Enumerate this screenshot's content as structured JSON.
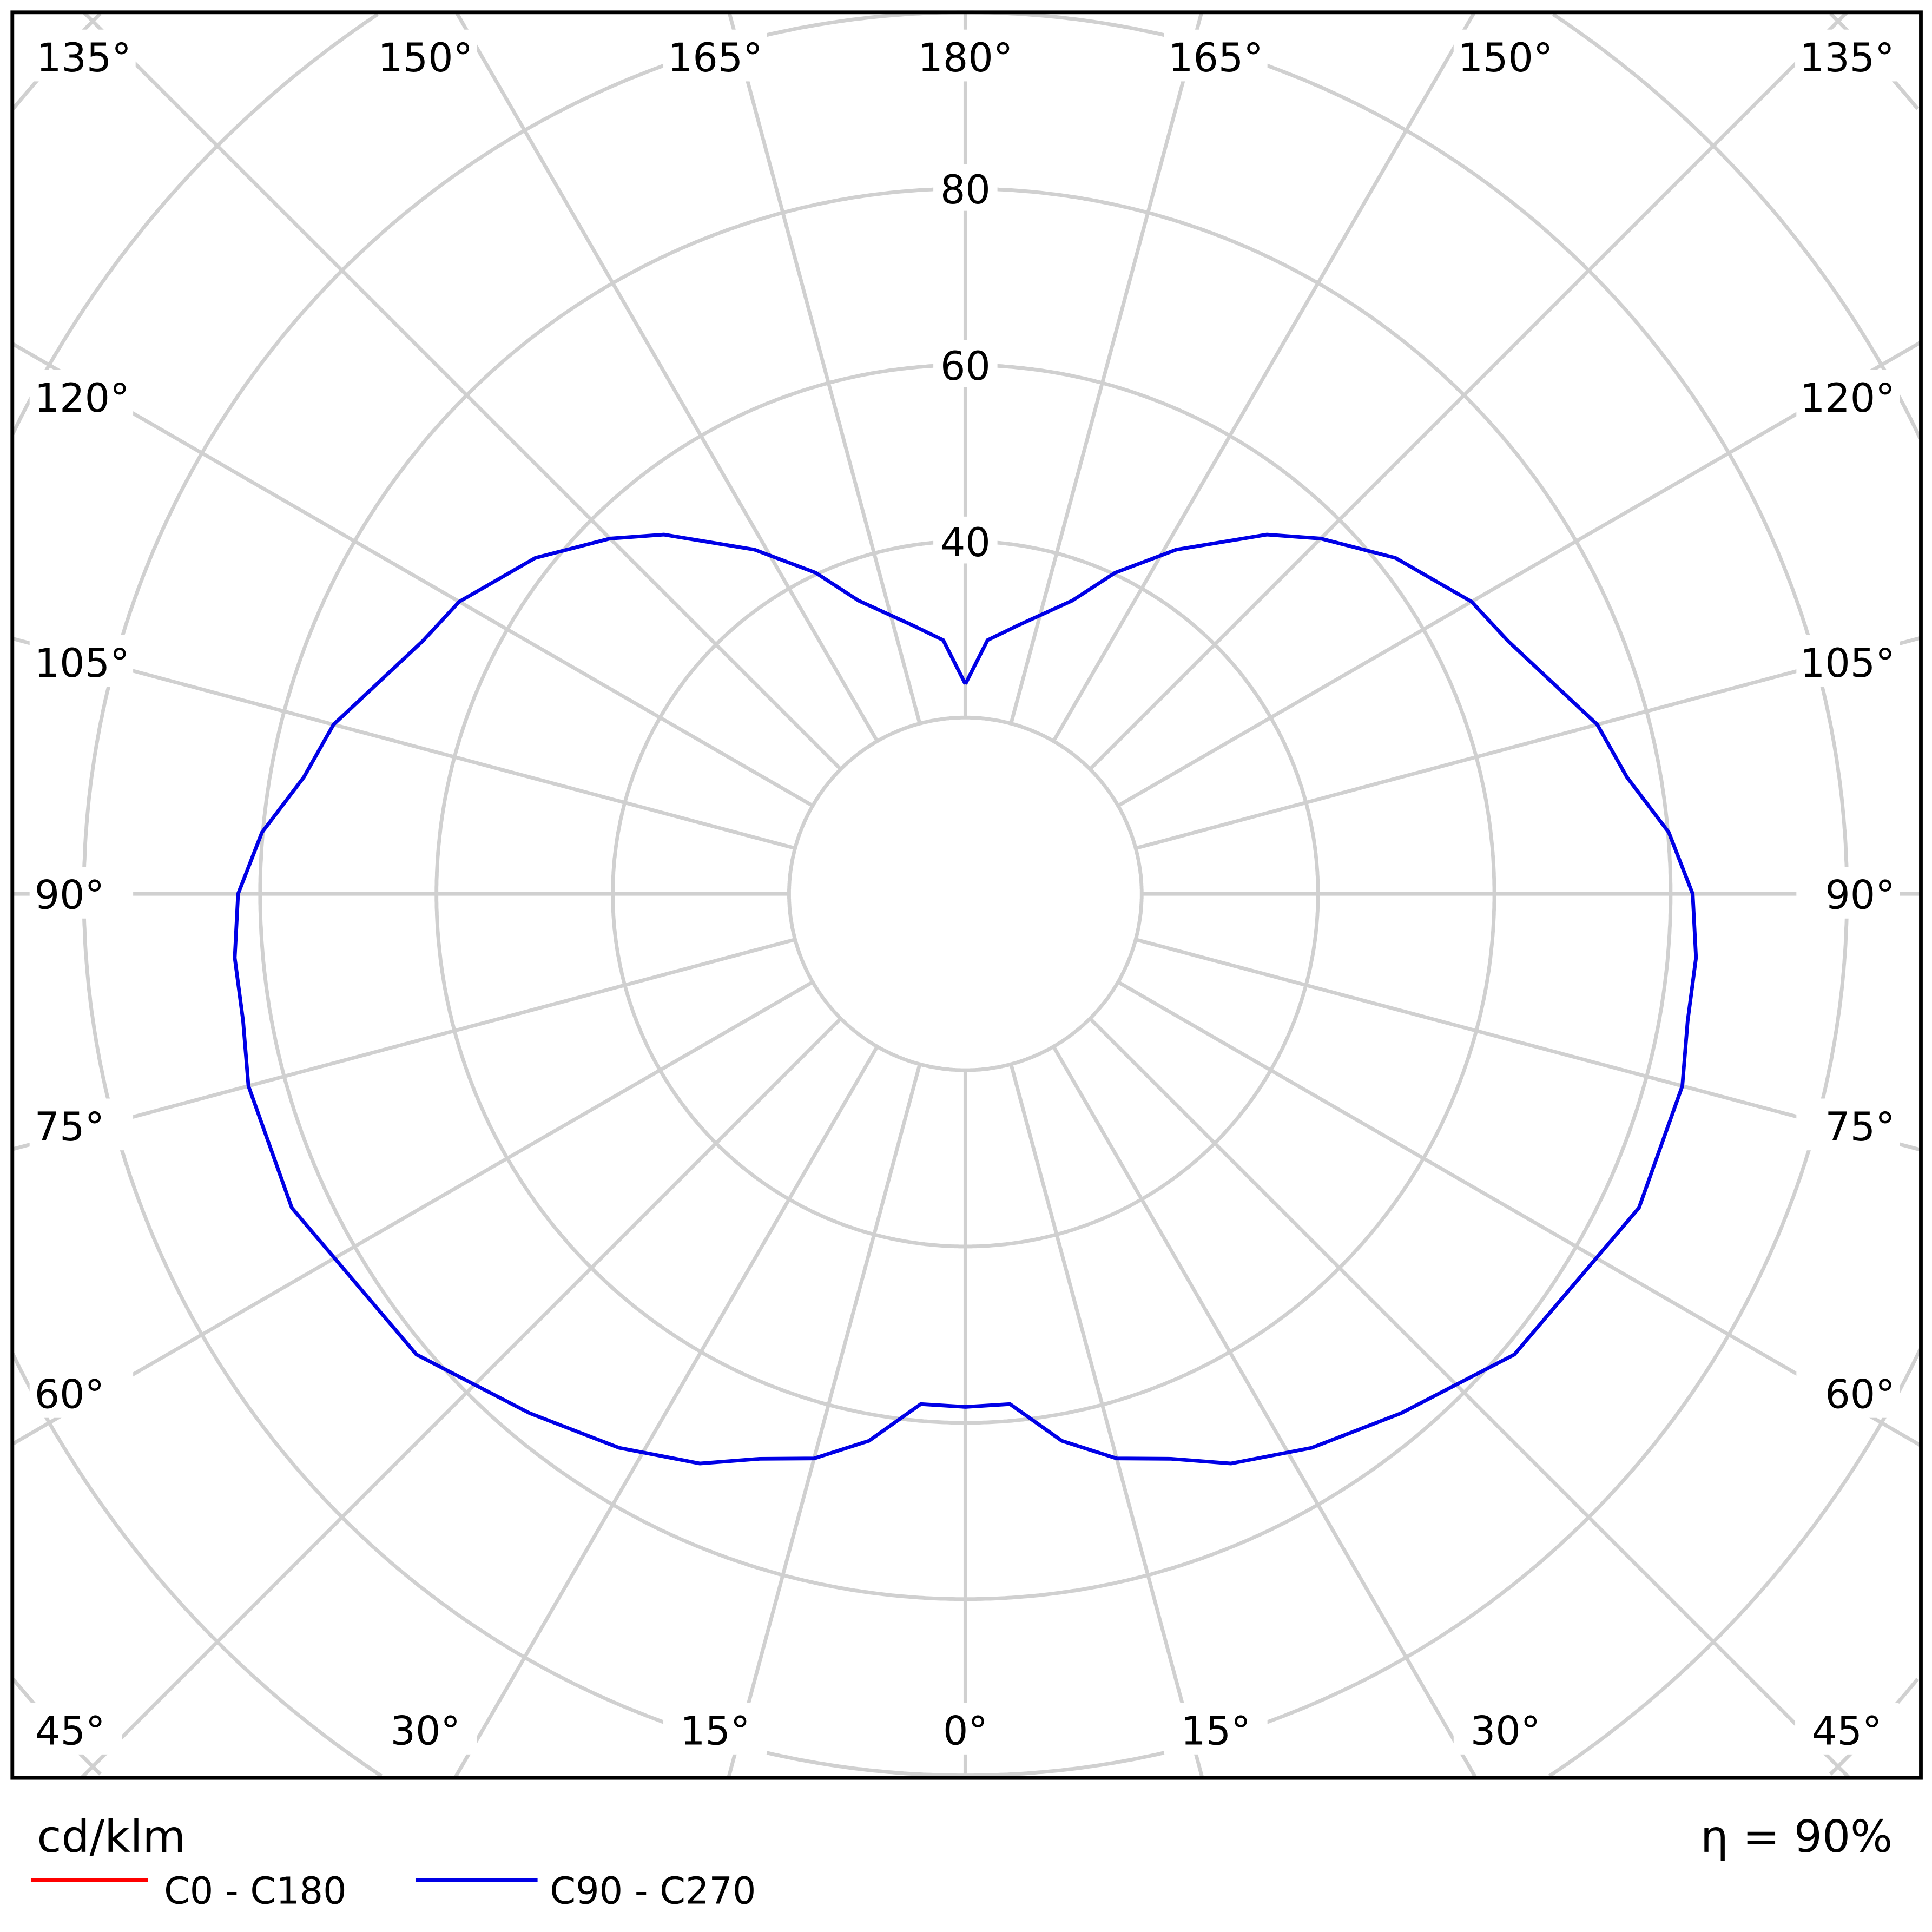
{
  "chart_data": {
    "type": "line",
    "subtype": "polar",
    "unit_label": "cd/klm",
    "efficiency_label": "η = 90%",
    "radial_ticks": [
      {
        "value": 40,
        "label": "40"
      },
      {
        "value": 60,
        "label": "60"
      },
      {
        "value": 80,
        "label": "80"
      }
    ],
    "radial_grid_step": 20,
    "angle_grid_step_deg": 15,
    "angle_labels": {
      "top": [
        "135°",
        "150°",
        "165°",
        "180°",
        "165°",
        "150°",
        "135°"
      ],
      "left": [
        "120°",
        "105°",
        "90°",
        "75°",
        "60°"
      ],
      "right": [
        "120°",
        "105°",
        "90°",
        "75°",
        "60°"
      ],
      "bottom": [
        "45°",
        "30°",
        "15°",
        "0°",
        "15°",
        "30°",
        "45°"
      ]
    },
    "grid": true,
    "legend_position": "bottom-left",
    "series": [
      {
        "name": "C0 - C180",
        "color": "#ff0000",
        "gamma": [],
        "values": []
      },
      {
        "name": "C90 - C270",
        "color": "#0000e6",
        "gamma": [
          0,
          5,
          10,
          15,
          20,
          25,
          32,
          40,
          50,
          65,
          75,
          80,
          85,
          90,
          95,
          100,
          105,
          115,
          120,
          128,
          135,
          140,
          148.5,
          155,
          160,
          169,
          175,
          180
        ],
        "values": [
          58.2,
          58.1,
          63,
          66.3,
          68.2,
          71.3,
          74.1,
          76.9,
          81.3,
          84.3,
          84.2,
          83.2,
          83.2,
          82.5,
          80.1,
          76.2,
          74.2,
          67.9,
          66.3,
          61.9,
          57,
          53.2,
          45.8,
          40.2,
          35.4,
          31,
          28.9,
          23.8
        ]
      }
    ]
  }
}
